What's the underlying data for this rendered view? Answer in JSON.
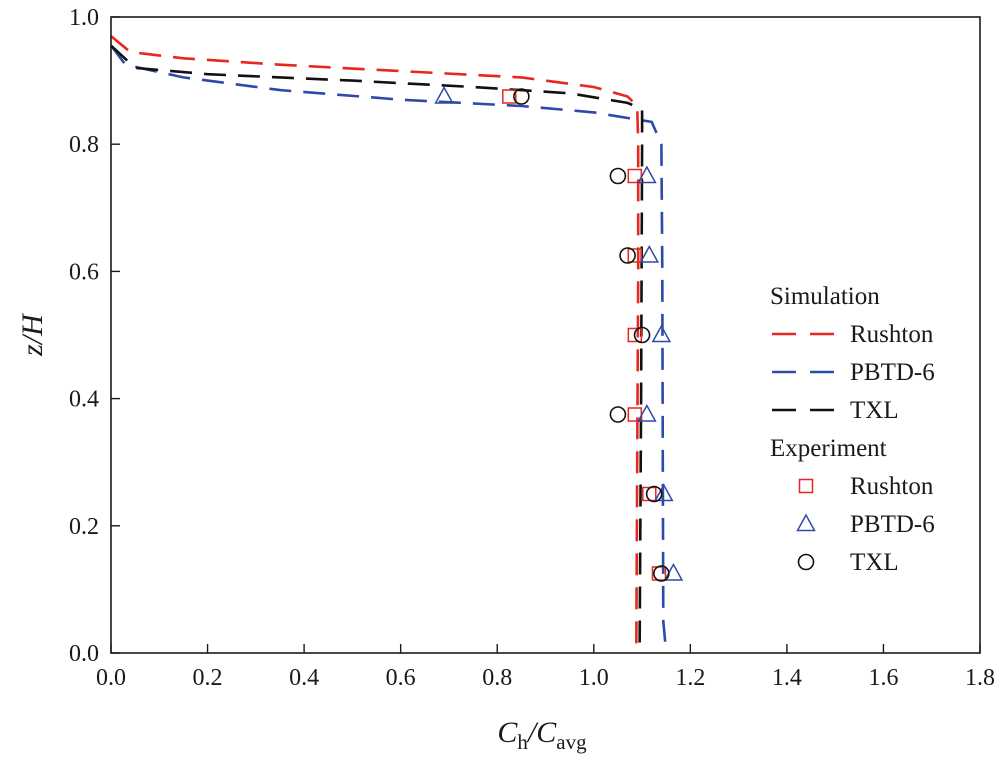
{
  "chart_data": {
    "type": "line",
    "xlabel": {
      "main": "C",
      "sub1": "h",
      "sep": "/C",
      "sub2": "avg"
    },
    "ylabel": {
      "main": "z",
      "rest": "/H"
    },
    "xlim": [
      0.0,
      1.8
    ],
    "ylim": [
      0.0,
      1.0
    ],
    "xticks": [
      "0.0",
      "0.2",
      "0.4",
      "0.6",
      "0.8",
      "1.0",
      "1.2",
      "1.4",
      "1.6",
      "1.8"
    ],
    "yticks": [
      "0.0",
      "0.2",
      "0.4",
      "0.6",
      "0.8",
      "1.0"
    ],
    "grid": false,
    "legend_position": "right",
    "simulation_heading": "Simulation",
    "experiment_heading": "Experiment",
    "series": [
      {
        "name": "Rushton",
        "kind": "simulation",
        "color": "#e8271f",
        "x": [
          0.0,
          0.04,
          0.15,
          0.35,
          0.6,
          0.85,
          1.0,
          1.07,
          1.09,
          1.092,
          1.092,
          1.09,
          1.088
        ],
        "y": [
          0.97,
          0.945,
          0.935,
          0.925,
          0.915,
          0.905,
          0.89,
          0.875,
          0.86,
          0.8,
          0.6,
          0.3,
          0.0
        ]
      },
      {
        "name": "PBTD-6",
        "kind": "simulation",
        "color": "#2e4aa8",
        "x": [
          0.0,
          0.03,
          0.15,
          0.35,
          0.6,
          0.85,
          1.0,
          1.08,
          1.12,
          1.14,
          1.142,
          1.143,
          1.144,
          1.15
        ],
        "y": [
          0.955,
          0.925,
          0.905,
          0.885,
          0.87,
          0.86,
          0.85,
          0.84,
          0.835,
          0.8,
          0.6,
          0.3,
          0.05,
          0.0
        ]
      },
      {
        "name": "TXL",
        "kind": "simulation",
        "color": "#111111",
        "x": [
          0.0,
          0.05,
          0.2,
          0.5,
          0.75,
          0.95,
          1.07,
          1.1,
          1.1,
          1.098,
          1.095
        ],
        "y": [
          0.955,
          0.92,
          0.91,
          0.9,
          0.89,
          0.88,
          0.865,
          0.855,
          0.8,
          0.4,
          0.0
        ]
      },
      {
        "name": "Rushton",
        "kind": "experiment",
        "marker": "square",
        "color": "#e8271f",
        "x": [
          0.825,
          1.085,
          1.085,
          1.085,
          1.085,
          1.115,
          1.135
        ],
        "y": [
          0.875,
          0.75,
          0.625,
          0.5,
          0.375,
          0.25,
          0.125
        ]
      },
      {
        "name": "PBTD-6",
        "kind": "experiment",
        "marker": "triangle",
        "color": "#2e4aa8",
        "x": [
          0.69,
          1.11,
          1.115,
          1.14,
          1.11,
          1.145,
          1.165
        ],
        "y": [
          0.875,
          0.75,
          0.625,
          0.5,
          0.375,
          0.25,
          0.125
        ]
      },
      {
        "name": "TXL",
        "kind": "experiment",
        "marker": "circle",
        "color": "#111111",
        "x": [
          0.85,
          1.05,
          1.07,
          1.1,
          1.05,
          1.125,
          1.14
        ],
        "y": [
          0.875,
          0.75,
          0.625,
          0.5,
          0.375,
          0.25,
          0.125
        ]
      }
    ]
  }
}
